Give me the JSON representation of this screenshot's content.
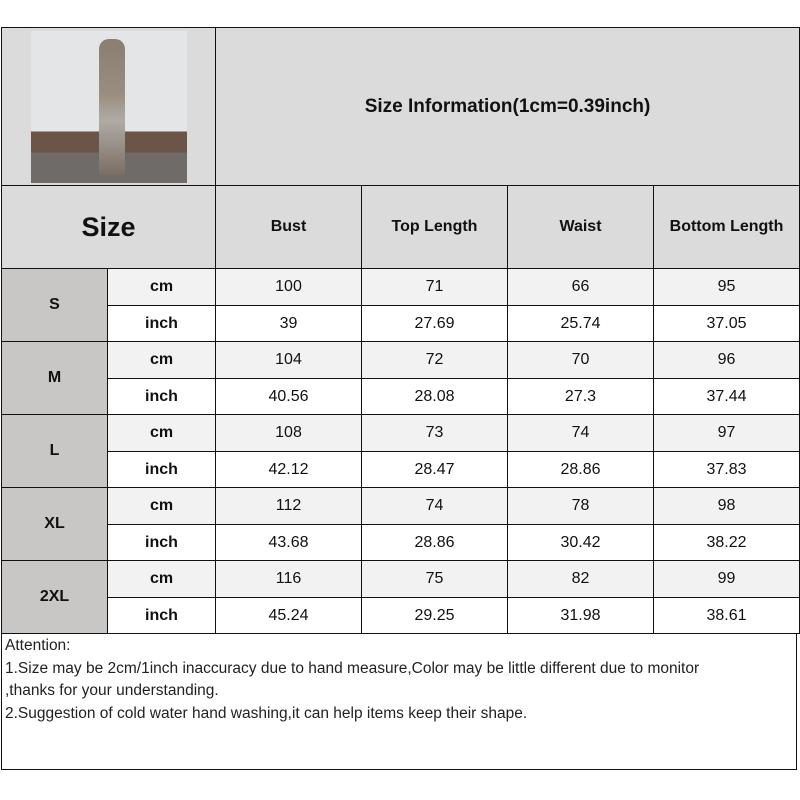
{
  "title": "Size Information(1cm=0.39inch)",
  "size_label": "Size",
  "columns": [
    "Bust",
    "Top Length",
    "Waist",
    "Bottom Length"
  ],
  "units": {
    "cm": "cm",
    "inch": "inch"
  },
  "rows": [
    {
      "size": "S",
      "cm": [
        "100",
        "71",
        "66",
        "95"
      ],
      "inch": [
        "39",
        "27.69",
        "25.74",
        "37.05"
      ]
    },
    {
      "size": "M",
      "cm": [
        "104",
        "72",
        "70",
        "96"
      ],
      "inch": [
        "40.56",
        "28.08",
        "27.3",
        "37.44"
      ]
    },
    {
      "size": "L",
      "cm": [
        "108",
        "73",
        "74",
        "97"
      ],
      "inch": [
        "42.12",
        "28.47",
        "28.86",
        "37.83"
      ]
    },
    {
      "size": "XL",
      "cm": [
        "112",
        "74",
        "78",
        "98"
      ],
      "inch": [
        "43.68",
        "28.86",
        "30.42",
        "38.22"
      ]
    },
    {
      "size": "2XL",
      "cm": [
        "116",
        "75",
        "82",
        "99"
      ],
      "inch": [
        "45.24",
        "29.25",
        "31.98",
        "38.61"
      ]
    }
  ],
  "attention": [
    "Attention:",
    "1.Size may be 2cm/1inch inaccuracy due to hand measure,Color may be little different due to monitor",
    ",thanks for your understanding.",
    "2.Suggestion of cold water hand washing,it can help items keep their shape."
  ]
}
